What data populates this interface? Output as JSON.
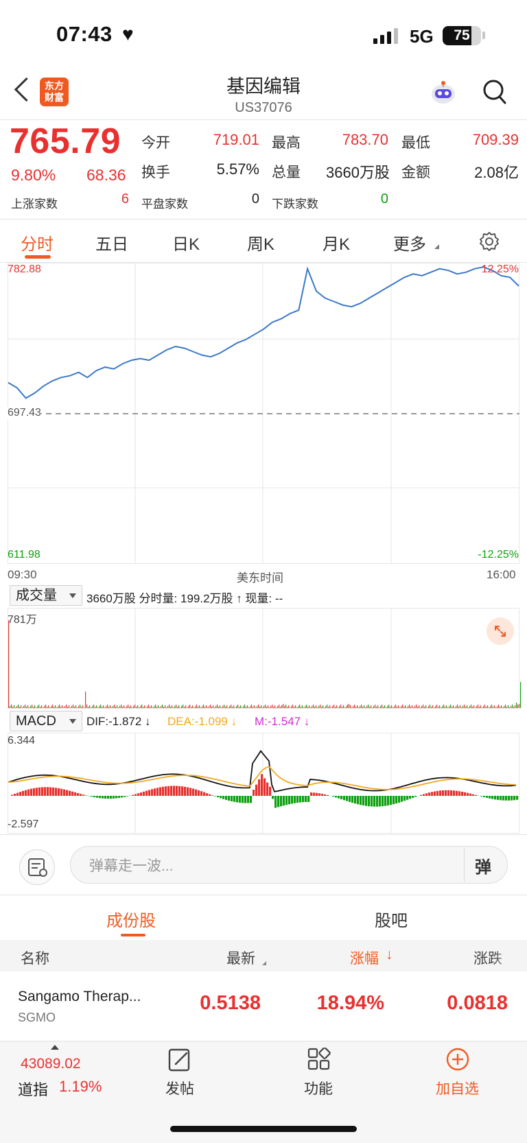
{
  "status_bar": {
    "time": "07:43",
    "network": "5G",
    "battery": "75",
    "battery_level": 0.75
  },
  "header": {
    "title": "基因编辑",
    "subtitle": "US37076",
    "logo_text": "东方财富"
  },
  "quote": {
    "price": "765.79",
    "change_pct": "9.80%",
    "change": "68.36",
    "open_label": "今开",
    "open": "719.01",
    "high_label": "最高",
    "high": "783.70",
    "low_label": "最低",
    "low": "709.39",
    "turnover_label": "换手",
    "turnover": "5.57%",
    "volume_label": "总量",
    "volume": "3660万股",
    "amount_label": "金额",
    "amount": "2.08亿",
    "rise_label": "上涨家数",
    "rise": "6",
    "flat_label": "平盘家数",
    "flat": "0",
    "fall_label": "下跌家数",
    "fall": "0"
  },
  "tabs": {
    "t1": "分时",
    "t2": "五日",
    "t3": "日K",
    "t4": "周K",
    "t5": "月K",
    "t6": "更多"
  },
  "chart": {
    "max_label": "782.88",
    "max_pct": "12.25%",
    "prev_close_label": "697.43",
    "min_label": "611.98",
    "min_pct": "-12.25%",
    "time_start": "09:30",
    "time_mid": "美东时间",
    "time_end": "16:00"
  },
  "volume_panel": {
    "dropdown": "成交量",
    "info": "3660万股 分时量: 199.2万股 ↑ 现量: --",
    "max_label": "781万"
  },
  "macd_panel": {
    "dropdown": "MACD",
    "dif": "DIF:-1.872 ↓",
    "dea": "DEA:-1.099 ↓",
    "m": "M:-1.547 ↓",
    "max_label": "6.344",
    "min_label": "-2.597"
  },
  "comment": {
    "placeholder": "弹幕走一波...",
    "button": "弹"
  },
  "section_tabs": {
    "t1": "成份股",
    "t2": "股吧"
  },
  "table": {
    "headers": {
      "name": "名称",
      "latest": "最新",
      "change_pct": "涨幅",
      "change": "涨跌"
    },
    "rows": [
      {
        "name": "Sangamo Therap...",
        "code": "SGMO",
        "latest": "0.5138",
        "change_pct": "18.94%",
        "change": "0.0818"
      }
    ]
  },
  "bottom_bar": {
    "index_value": "43089.02",
    "index_name": "道指",
    "index_pct": "1.19%",
    "nav_post": "发帖",
    "nav_function": "功能",
    "nav_watch": "加自选"
  },
  "colors": {
    "up": "#e8312f",
    "down": "#10a010",
    "accent": "#f05a22",
    "line": "#3a78c8",
    "dea": "#f2a81d",
    "m": "#d12bd1"
  },
  "chart_data": {
    "type": "line",
    "title": "",
    "xlabel": "美东时间",
    "x_range": [
      "09:30",
      "16:00"
    ],
    "ylim": [
      611.98,
      782.88
    ],
    "prev_close": 697.43,
    "series": [
      {
        "values": [
          715,
          712,
          706,
          709,
          713,
          716,
          718,
          719,
          721,
          718,
          722,
          724,
          723,
          726,
          728,
          729,
          728,
          731,
          734,
          736,
          735,
          733,
          731,
          730,
          732,
          735,
          738,
          740,
          743,
          746,
          750,
          752,
          755,
          757,
          781,
          768,
          764,
          762,
          760,
          759,
          761,
          764,
          767,
          770,
          773,
          776,
          778,
          777,
          779,
          781,
          780,
          778,
          779,
          781,
          782,
          780,
          777,
          776,
          771
        ]
      }
    ]
  }
}
